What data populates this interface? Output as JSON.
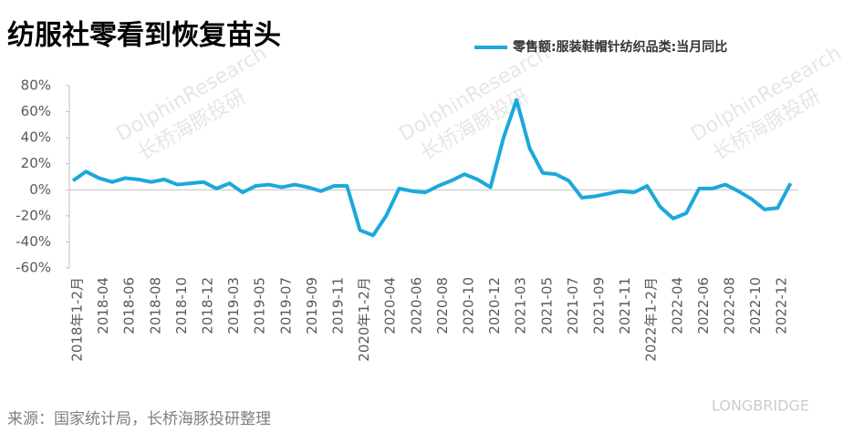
{
  "chart_data": {
    "type": "line",
    "title": "纺服社零看到恢复苗头",
    "source": "来源：国家统计局，长桥海豚投研整理",
    "watermarks": [
      "DolphinResearch",
      "长桥海豚投研",
      "LONGBRIDGE"
    ],
    "categories": [
      "2018年1-2月",
      null,
      "2018-04",
      null,
      "2018-06",
      null,
      "2018-08",
      null,
      "2018-10",
      null,
      "2018-12",
      null,
      "2019-03",
      null,
      "2019-05",
      null,
      "2019-07",
      null,
      "2019-09",
      null,
      "2019-11",
      null,
      "2020年1-2月",
      null,
      "2020-04",
      null,
      "2020-06",
      null,
      "2020-08",
      null,
      "2020-10",
      null,
      "2020-12",
      null,
      "2021-03",
      null,
      "2021-05",
      null,
      "2021-07",
      null,
      "2021-09",
      null,
      "2021-11",
      null,
      "2022年1-2月",
      null,
      "2022-04",
      null,
      "2022-06",
      null,
      "2022-08",
      null,
      "2022-10",
      null,
      "2022-12",
      null
    ],
    "series": [
      {
        "name": "零售额:服装鞋帽针纺织品类:当月同比",
        "color": "#1ba9d9",
        "values": [
          7,
          14,
          9,
          6,
          9,
          8,
          6,
          8,
          4,
          5,
          6,
          1,
          5,
          -2,
          3,
          4,
          2,
          4,
          2,
          -1,
          3,
          3,
          -31,
          -35,
          -20,
          1,
          -1,
          -2,
          3,
          7,
          12,
          8,
          2,
          40,
          69,
          32,
          13,
          12,
          7,
          -6,
          -5,
          -3,
          -1,
          -2,
          3,
          -13,
          -22,
          -18,
          1,
          1,
          4,
          -1,
          -7,
          -15,
          -14,
          5
        ]
      }
    ],
    "ylim": [
      -60,
      80
    ],
    "yticks": [
      {
        "value": -60,
        "label": "-60%"
      },
      {
        "value": -40,
        "label": "-40%"
      },
      {
        "value": -20,
        "label": "-20%"
      },
      {
        "value": 0,
        "label": "0%"
      },
      {
        "value": 20,
        "label": "20%"
      },
      {
        "value": 40,
        "label": "40%"
      },
      {
        "value": 60,
        "label": "60%"
      },
      {
        "value": 80,
        "label": "80%"
      }
    ],
    "zero_line": true
  }
}
